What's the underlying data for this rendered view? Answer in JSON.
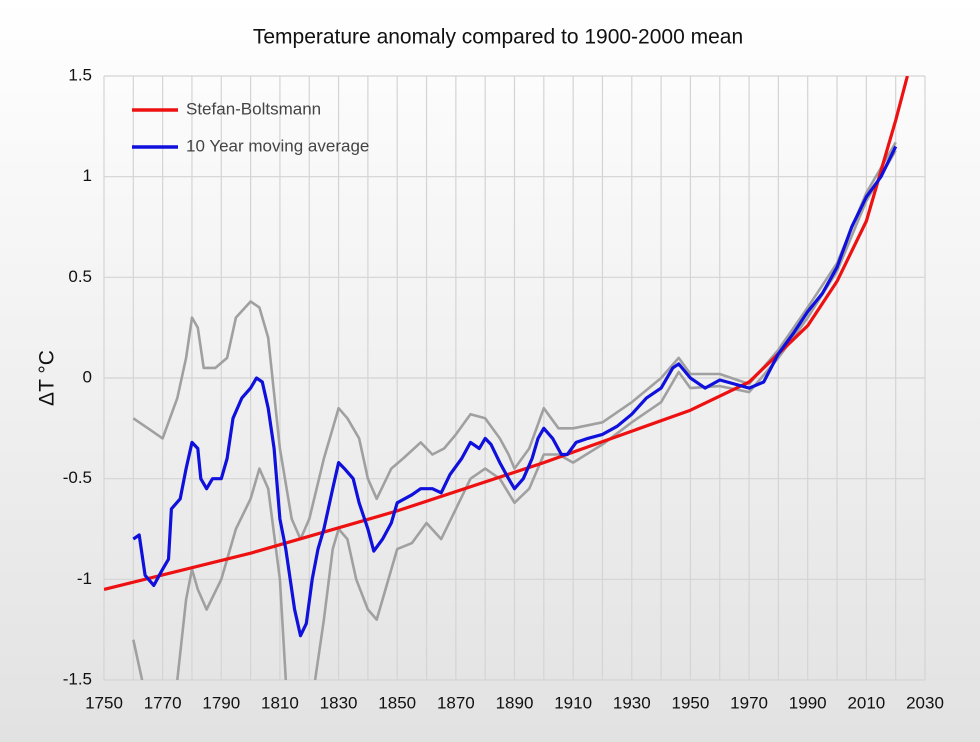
{
  "chart_data": {
    "type": "line",
    "title": "Temperature anomaly compared to 1900-2000 mean",
    "ylabel": "ΔT °C",
    "xlim": [
      1750,
      2030
    ],
    "xticks": [
      1750,
      1770,
      1790,
      1810,
      1830,
      1850,
      1870,
      1890,
      1910,
      1930,
      1950,
      1970,
      1990,
      2010,
      2030
    ],
    "xminorticks": [
      1760,
      1780,
      1800,
      1820,
      1840,
      1860,
      1880,
      1900,
      1920,
      1940,
      1960,
      1980,
      2000,
      2020
    ],
    "ylim": [
      -1.5,
      1.5
    ],
    "yticks": [
      -1.5,
      -1,
      -0.5,
      0,
      0.5,
      1,
      1.5
    ],
    "grid": true,
    "legend": "upper left",
    "series": [
      {
        "color": "#a0a0a0",
        "x": [
          1760,
          1765,
          1770,
          1775,
          1778,
          1780,
          1782,
          1784,
          1788,
          1792,
          1795,
          1800,
          1803,
          1806,
          1810,
          1814,
          1817,
          1820,
          1825,
          1830,
          1833,
          1837,
          1840,
          1843,
          1848,
          1852,
          1858,
          1862,
          1866,
          1870,
          1875,
          1880,
          1885,
          1888,
          1890,
          1895,
          1900,
          1905,
          1910,
          1920,
          1930,
          1940,
          1946,
          1950,
          1960,
          1970,
          1980,
          1990,
          2000,
          2010,
          2020
        ],
        "values": [
          -0.2,
          -0.25,
          -0.3,
          -0.1,
          0.1,
          0.3,
          0.25,
          0.05,
          0.05,
          0.1,
          0.3,
          0.38,
          0.35,
          0.2,
          -0.35,
          -0.7,
          -0.8,
          -0.7,
          -0.4,
          -0.15,
          -0.2,
          -0.3,
          -0.5,
          -0.6,
          -0.45,
          -0.4,
          -0.32,
          -0.38,
          -0.35,
          -0.28,
          -0.18,
          -0.2,
          -0.3,
          -0.38,
          -0.45,
          -0.35,
          -0.15,
          -0.25,
          -0.25,
          -0.22,
          -0.12,
          0,
          0.1,
          0.02,
          0.02,
          -0.03,
          0.14,
          0.35,
          0.57,
          0.92,
          1.17
        ]
      },
      {
        "color": "#a0a0a0",
        "x": [
          1760,
          1763,
          1770,
          1775,
          1778,
          1780,
          1782,
          1785,
          1790,
          1795,
          1800,
          1803,
          1806,
          1810,
          1812,
          1817,
          1822,
          1825,
          1828,
          1830,
          1833,
          1836,
          1840,
          1843,
          1846,
          1850,
          1855,
          1860,
          1865,
          1870,
          1875,
          1880,
          1885,
          1890,
          1895,
          1900,
          1905,
          1910,
          1920,
          1930,
          1940,
          1946,
          1950,
          1960,
          1970,
          1980,
          1990,
          2000,
          2010,
          2020
        ],
        "values": [
          -1.3,
          -1.5,
          null,
          -1.5,
          -1.1,
          -0.95,
          -1.05,
          -1.15,
          -1.0,
          -0.75,
          -0.6,
          -0.45,
          -0.55,
          -1.0,
          -1.5,
          null,
          -1.5,
          -1.2,
          -0.85,
          -0.75,
          -0.8,
          -1.0,
          -1.15,
          -1.2,
          -1.05,
          -0.85,
          -0.82,
          -0.72,
          -0.8,
          -0.65,
          -0.5,
          -0.45,
          -0.5,
          -0.62,
          -0.55,
          -0.38,
          -0.38,
          -0.42,
          -0.33,
          -0.22,
          -0.12,
          0.03,
          -0.05,
          -0.04,
          -0.07,
          0.1,
          0.3,
          0.53,
          0.88,
          1.13
        ]
      },
      {
        "name": "Stefan-Boltsmann",
        "color": "#ee1111",
        "x": [
          1750,
          1800,
          1850,
          1900,
          1950,
          1970,
          1980,
          1990,
          2000,
          2010,
          2020,
          2024
        ],
        "values": [
          -1.05,
          -0.87,
          -0.66,
          -0.42,
          -0.16,
          -0.02,
          0.12,
          0.26,
          0.48,
          0.78,
          1.28,
          1.5
        ]
      },
      {
        "name": "10 Year moving average",
        "color": "#1010dd",
        "x": [
          1760,
          1762,
          1764,
          1767,
          1770,
          1772,
          1773,
          1776,
          1778,
          1780,
          1782,
          1783,
          1785,
          1787,
          1790,
          1792,
          1794,
          1797,
          1800,
          1802,
          1804,
          1806,
          1808,
          1810,
          1812,
          1815,
          1817,
          1819,
          1821,
          1823,
          1825,
          1828,
          1830,
          1832,
          1835,
          1837,
          1840,
          1842,
          1845,
          1848,
          1850,
          1855,
          1858,
          1862,
          1865,
          1868,
          1872,
          1875,
          1878,
          1880,
          1882,
          1885,
          1888,
          1890,
          1893,
          1896,
          1898,
          1900,
          1903,
          1906,
          1908,
          1911,
          1915,
          1920,
          1925,
          1930,
          1935,
          1940,
          1944,
          1946,
          1950,
          1955,
          1960,
          1965,
          1970,
          1975,
          1980,
          1985,
          1990,
          1995,
          2000,
          2005,
          2010,
          2015,
          2020
        ],
        "values": [
          -0.8,
          -0.78,
          -0.98,
          -1.03,
          -0.95,
          -0.9,
          -0.65,
          -0.6,
          -0.45,
          -0.32,
          -0.35,
          -0.5,
          -0.55,
          -0.5,
          -0.5,
          -0.4,
          -0.2,
          -0.1,
          -0.05,
          0,
          -0.02,
          -0.15,
          -0.35,
          -0.7,
          -0.85,
          -1.15,
          -1.28,
          -1.22,
          -1.0,
          -0.85,
          -0.75,
          -0.55,
          -0.42,
          -0.45,
          -0.5,
          -0.62,
          -0.75,
          -0.86,
          -0.8,
          -0.72,
          -0.62,
          -0.58,
          -0.55,
          -0.55,
          -0.57,
          -0.48,
          -0.4,
          -0.32,
          -0.35,
          -0.3,
          -0.33,
          -0.42,
          -0.5,
          -0.55,
          -0.5,
          -0.4,
          -0.3,
          -0.25,
          -0.3,
          -0.38,
          -0.38,
          -0.32,
          -0.3,
          -0.28,
          -0.24,
          -0.18,
          -0.1,
          -0.05,
          0.05,
          0.07,
          0,
          -0.05,
          -0.01,
          -0.03,
          -0.05,
          -0.02,
          0.12,
          0.22,
          0.33,
          0.42,
          0.55,
          0.75,
          0.9,
          1.0,
          1.15
        ]
      }
    ]
  }
}
